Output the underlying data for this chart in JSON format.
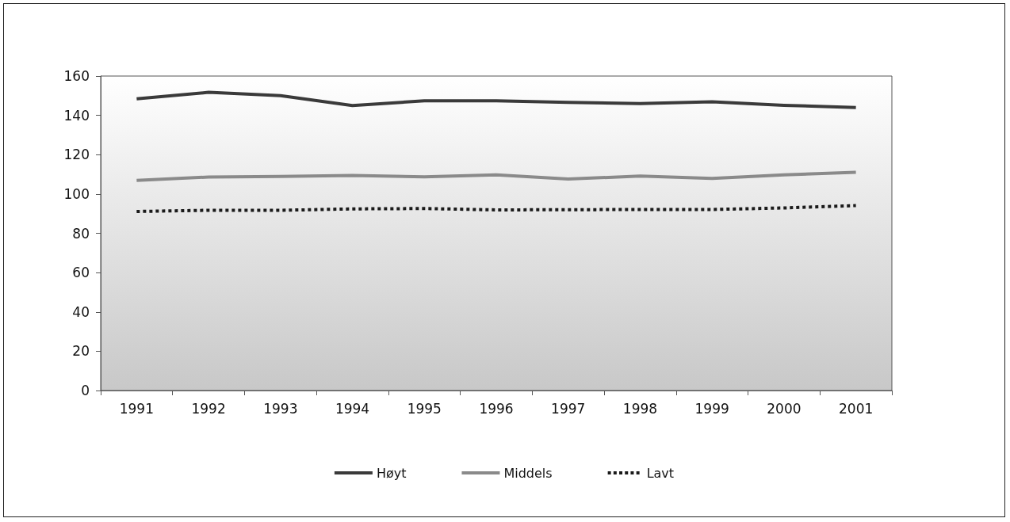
{
  "chart_data": {
    "type": "line",
    "categories": [
      "1991",
      "1992",
      "1993",
      "1994",
      "1995",
      "1996",
      "1997",
      "1998",
      "1999",
      "2000",
      "2001"
    ],
    "series": [
      {
        "name": "Høyt",
        "color": "#3a3a3a",
        "line_style": "solid",
        "values": [
          148.4,
          151.7,
          150,
          145,
          147.4,
          147.4,
          146.6,
          146,
          146.9,
          145.1,
          144
        ]
      },
      {
        "name": "Middels",
        "color": "#8a8a8a",
        "line_style": "solid",
        "values": [
          106.9,
          108.6,
          108.9,
          109.4,
          108.7,
          109.7,
          107.6,
          109.1,
          107.9,
          109.7,
          111
        ]
      },
      {
        "name": "Lavt",
        "color": "#1a1a1a",
        "line_style": "dotted",
        "values": [
          91.1,
          91.7,
          91.7,
          92.4,
          92.6,
          91.9,
          92,
          92.1,
          92.1,
          92.9,
          94.1
        ]
      }
    ],
    "ylim": [
      0,
      160
    ],
    "yticks": [
      0,
      20,
      40,
      60,
      80,
      100,
      120,
      140,
      160
    ],
    "grid": false,
    "legend": "bottom",
    "marker": "none"
  }
}
